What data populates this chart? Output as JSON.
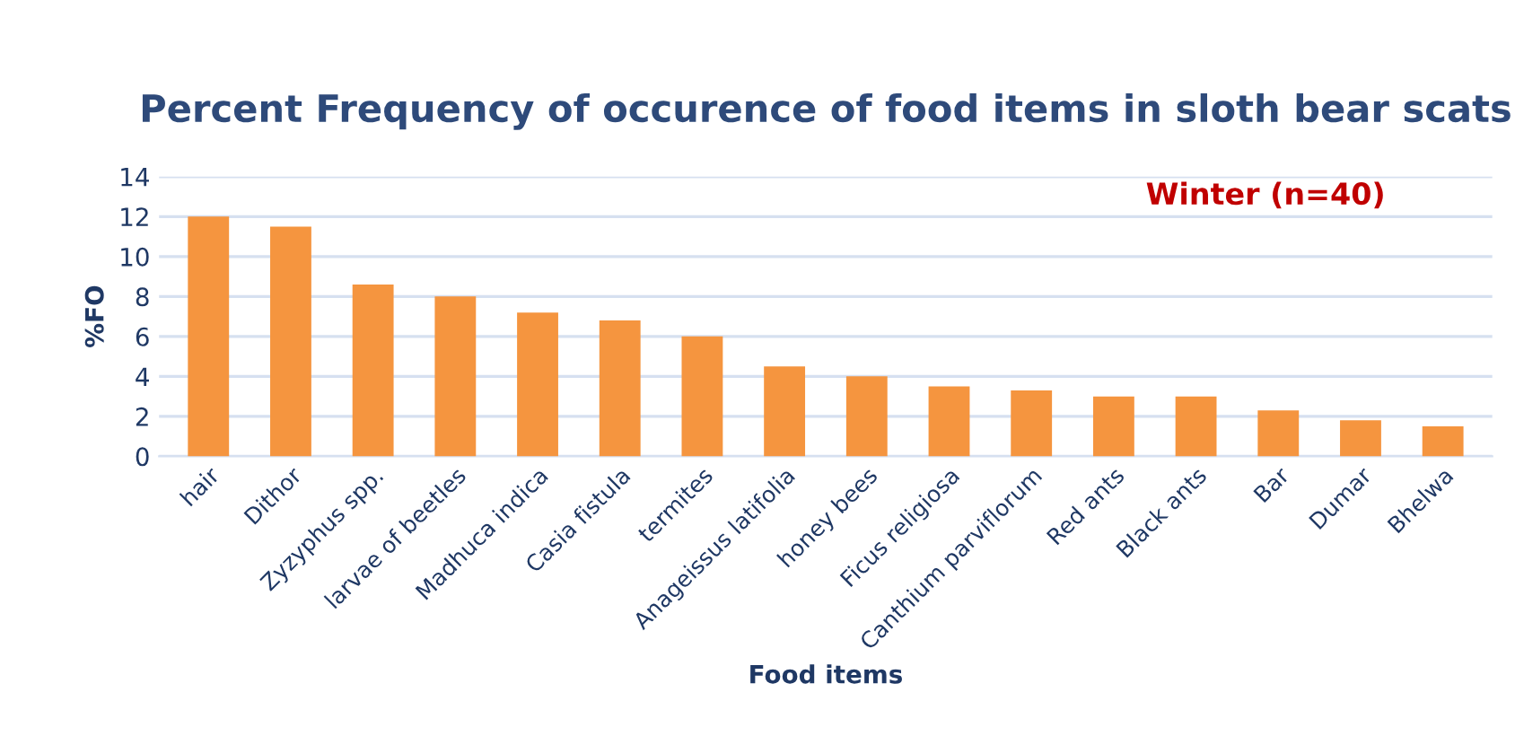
{
  "chart_data": {
    "type": "bar",
    "title": "Percent Frequency of occurence of food items in sloth bear scats",
    "xlabel": "Food items",
    "ylabel": "%FO",
    "categories": [
      "hair",
      "Dithor",
      "Zyzyphus spp.",
      "larvae of beetles",
      "Madhuca indica",
      "Casia fistula",
      "termites",
      "Anageissus latifolia",
      "honey bees",
      "Ficus religiosa",
      "Canthium parviflorum",
      "Red ants",
      "Black ants",
      "Bar",
      "Dumar",
      "Bhelwa"
    ],
    "values": [
      12,
      11.5,
      8.6,
      8,
      7.2,
      6.8,
      6,
      4.5,
      4,
      3.5,
      3.3,
      3,
      3,
      2.3,
      1.8,
      1.5
    ],
    "color": "#f5953f",
    "ylim": [
      0,
      14
    ],
    "yticks": [
      0,
      2,
      4,
      6,
      8,
      10,
      12,
      14
    ],
    "grid": "y",
    "annotations": [
      "Winter (n=40)"
    ]
  }
}
